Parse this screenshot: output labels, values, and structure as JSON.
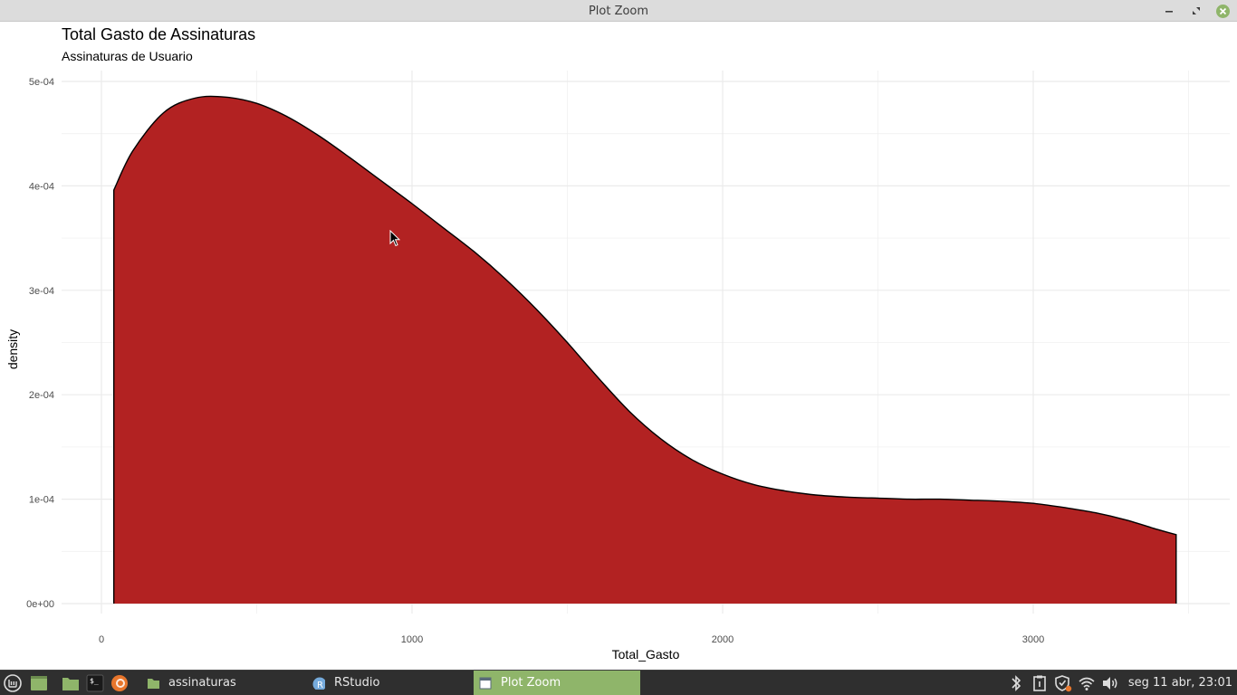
{
  "window": {
    "title": "Plot Zoom"
  },
  "chart_data": {
    "type": "area",
    "title": "Total Gasto de Assinaturas",
    "subtitle": "Assinaturas de Usuario",
    "xlabel": "Total_Gasto",
    "ylabel": "density",
    "xlim": [
      -130,
      3530
    ],
    "ylim": [
      0,
      0.0005
    ],
    "x_ticks": [
      0,
      1000,
      2000,
      3000
    ],
    "x_tick_labels": [
      "0",
      "1000",
      "2000",
      "3000"
    ],
    "y_ticks": [
      0,
      0.0001,
      0.0002,
      0.0003,
      0.0004,
      0.0005
    ],
    "y_tick_labels": [
      "0e+00",
      "1e-04",
      "2e-04",
      "3e-04",
      "4e-04",
      "5e-04"
    ],
    "fill_color": "#b22222",
    "line_color": "#000000",
    "grid": true,
    "x": [
      40,
      100,
      200,
      300,
      400,
      500,
      600,
      700,
      800,
      900,
      1000,
      1100,
      1200,
      1300,
      1400,
      1500,
      1600,
      1700,
      1800,
      1900,
      2000,
      2100,
      2200,
      2300,
      2400,
      2500,
      2600,
      2700,
      2800,
      2900,
      3000,
      3100,
      3200,
      3300,
      3400,
      3460
    ],
    "y": [
      0.000396,
      0.000433,
      0.00047,
      0.000484,
      0.000485,
      0.000479,
      0.000466,
      0.000448,
      0.000427,
      0.000405,
      0.000383,
      0.00036,
      0.000337,
      0.000311,
      0.000282,
      0.00025,
      0.000216,
      0.000184,
      0.000158,
      0.000138,
      0.000124,
      0.000114,
      0.000108,
      0.000104,
      0.000102,
      0.000101,
      0.0001,
      0.0001,
      9.9e-05,
      9.8e-05,
      9.6e-05,
      9.2e-05,
      8.7e-05,
      8e-05,
      7.1e-05,
      6.6e-05
    ]
  },
  "taskbar": {
    "tasks": [
      {
        "label": "assinaturas"
      },
      {
        "label": "RStudio"
      },
      {
        "label": "Plot Zoom"
      }
    ],
    "clock": "seg 11 abr, 23:01"
  }
}
